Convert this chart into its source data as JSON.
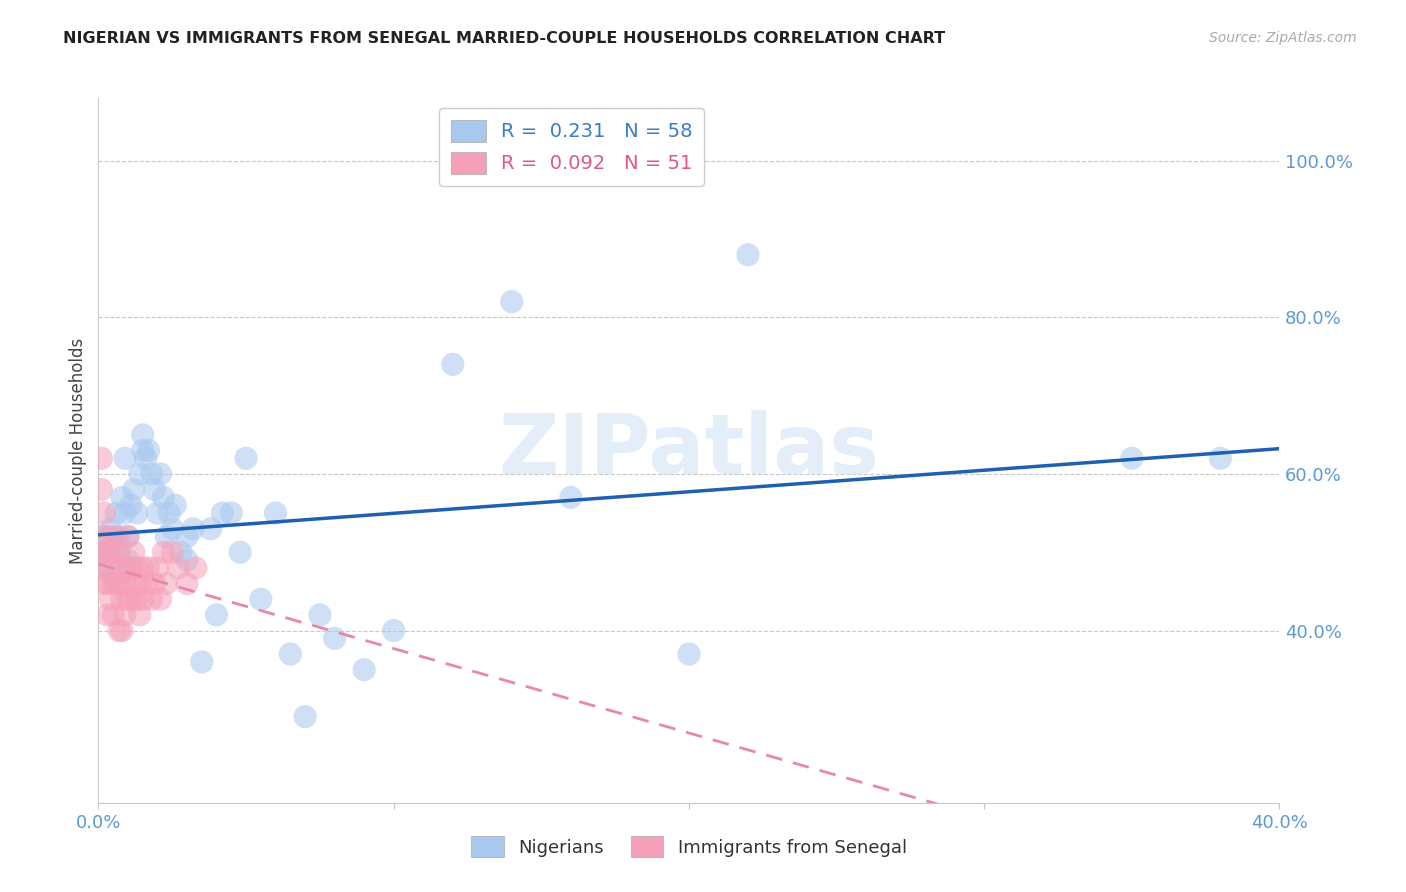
{
  "title": "NIGERIAN VS IMMIGRANTS FROM SENEGAL MARRIED-COUPLE HOUSEHOLDS CORRELATION CHART",
  "source": "Source: ZipAtlas.com",
  "ylabel": "Married-couple Households",
  "xlim": [
    0.0,
    0.4
  ],
  "ylim": [
    0.18,
    1.08
  ],
  "xticks": [
    0.0,
    0.1,
    0.2,
    0.3,
    0.4
  ],
  "xtick_labels": [
    "0.0%",
    "",
    "",
    "",
    "40.0%"
  ],
  "ytick_labels_right": [
    "100.0%",
    "80.0%",
    "60.0%",
    "40.0%"
  ],
  "ytick_values_right": [
    1.0,
    0.8,
    0.6,
    0.4
  ],
  "watermark": "ZIPatlas",
  "nigerian_color": "#a8c8f0",
  "senegal_color": "#f5a0b8",
  "nigerian_line_color": "#2060b0",
  "senegal_line_color": "#e888a8",
  "nigerian_R": 0.231,
  "nigerian_N": 58,
  "senegal_R": 0.092,
  "senegal_N": 51,
  "nig_x": [
    0.001,
    0.002,
    0.003,
    0.003,
    0.004,
    0.005,
    0.005,
    0.006,
    0.007,
    0.007,
    0.008,
    0.009,
    0.009,
    0.01,
    0.01,
    0.011,
    0.012,
    0.013,
    0.014,
    0.015,
    0.015,
    0.016,
    0.017,
    0.018,
    0.019,
    0.02,
    0.021,
    0.022,
    0.023,
    0.024,
    0.025,
    0.026,
    0.028,
    0.03,
    0.03,
    0.032,
    0.035,
    0.038,
    0.04,
    0.042,
    0.045,
    0.048,
    0.05,
    0.055,
    0.06,
    0.065,
    0.07,
    0.075,
    0.08,
    0.09,
    0.1,
    0.12,
    0.14,
    0.16,
    0.2,
    0.22,
    0.35,
    0.38
  ],
  "nig_y": [
    0.5,
    0.52,
    0.5,
    0.48,
    0.53,
    0.51,
    0.47,
    0.55,
    0.5,
    0.52,
    0.57,
    0.62,
    0.55,
    0.52,
    0.49,
    0.56,
    0.58,
    0.55,
    0.6,
    0.63,
    0.65,
    0.62,
    0.63,
    0.6,
    0.58,
    0.55,
    0.6,
    0.57,
    0.52,
    0.55,
    0.53,
    0.56,
    0.5,
    0.52,
    0.49,
    0.53,
    0.36,
    0.53,
    0.42,
    0.55,
    0.55,
    0.5,
    0.62,
    0.44,
    0.55,
    0.37,
    0.29,
    0.42,
    0.39,
    0.35,
    0.4,
    0.74,
    0.82,
    0.57,
    0.37,
    0.88,
    0.62,
    0.62
  ],
  "sen_x": [
    0.001,
    0.001,
    0.001,
    0.001,
    0.002,
    0.002,
    0.002,
    0.003,
    0.003,
    0.003,
    0.004,
    0.004,
    0.004,
    0.005,
    0.005,
    0.005,
    0.006,
    0.006,
    0.007,
    0.007,
    0.007,
    0.008,
    0.008,
    0.008,
    0.009,
    0.009,
    0.01,
    0.01,
    0.01,
    0.011,
    0.011,
    0.012,
    0.012,
    0.013,
    0.013,
    0.014,
    0.014,
    0.015,
    0.015,
    0.016,
    0.017,
    0.018,
    0.019,
    0.02,
    0.021,
    0.022,
    0.023,
    0.025,
    0.027,
    0.03,
    0.033
  ],
  "sen_y": [
    0.62,
    0.58,
    0.52,
    0.48,
    0.55,
    0.5,
    0.46,
    0.5,
    0.46,
    0.42,
    0.52,
    0.48,
    0.44,
    0.5,
    0.46,
    0.42,
    0.52,
    0.46,
    0.5,
    0.46,
    0.4,
    0.48,
    0.44,
    0.4,
    0.46,
    0.42,
    0.52,
    0.48,
    0.44,
    0.48,
    0.44,
    0.5,
    0.46,
    0.48,
    0.44,
    0.46,
    0.42,
    0.48,
    0.44,
    0.46,
    0.48,
    0.44,
    0.46,
    0.48,
    0.44,
    0.5,
    0.46,
    0.5,
    0.48,
    0.46,
    0.48
  ]
}
